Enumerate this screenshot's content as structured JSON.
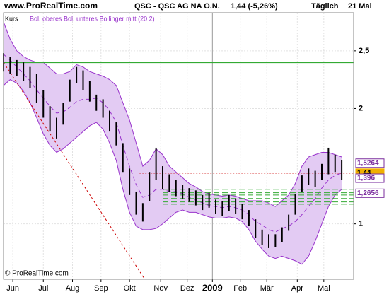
{
  "chart_data": {
    "type": "ohlc",
    "source": "www.ProRealTime.com",
    "title": "QSC - QSC AG NA O.N.",
    "quote": "1,44 (-5,26%)",
    "period": "Täglich",
    "date": "21 Mai",
    "copyright": "© ProRealTime.com",
    "xlim": [
      0,
      52.8
    ],
    "xticks": [
      {
        "value": 1.4,
        "label": "Jun"
      },
      {
        "value": 6,
        "label": "Jul"
      },
      {
        "value": 10.4,
        "label": "Aug"
      },
      {
        "value": 14.7,
        "label": "Sep"
      },
      {
        "value": 19,
        "label": "Okt"
      },
      {
        "value": 23.7,
        "label": "Nov"
      },
      {
        "value": 27.7,
        "label": "Dez"
      },
      {
        "value": 31.5,
        "label": "2009",
        "bold": true
      },
      {
        "value": 35.7,
        "label": "Feb"
      },
      {
        "value": 39.7,
        "label": "Mär"
      },
      {
        "value": 44.3,
        "label": "Apr"
      },
      {
        "value": 48.3,
        "label": "Mai"
      }
    ],
    "ylim": [
      0.52,
      2.83
    ],
    "yticks": [
      {
        "value": 2.5,
        "label": "2,5"
      },
      2,
      1
    ],
    "grid": true,
    "series": [
      {
        "name": "Kurs",
        "color": "#000000",
        "high": [
          2.48,
          2.45,
          2.42,
          2.4,
          2.36,
          2.3,
          2.16,
          2.02,
          1.92,
          2.05,
          2.25,
          2.36,
          2.33,
          2.24,
          2.12,
          2.08,
          1.98,
          1.88,
          1.7,
          1.48,
          1.28,
          1.18,
          1.45,
          1.66,
          1.5,
          1.43,
          1.38,
          1.34,
          1.31,
          1.29,
          1.25,
          1.27,
          1.21,
          1.2,
          1.25,
          1.22,
          1.17,
          1.12,
          1.04,
          0.95,
          0.91,
          0.91,
          0.97,
          1.08,
          1.26,
          1.42,
          1.48,
          1.46,
          1.52,
          1.66,
          1.6,
          1.55
        ],
        "low": [
          2.32,
          2.3,
          2.28,
          2.24,
          2.18,
          2.05,
          1.92,
          1.8,
          1.74,
          1.86,
          2.06,
          2.22,
          2.16,
          2.06,
          1.98,
          1.92,
          1.8,
          1.68,
          1.45,
          1.25,
          1.08,
          1.02,
          1.2,
          1.38,
          1.3,
          1.28,
          1.24,
          1.22,
          1.19,
          1.16,
          1.12,
          1.14,
          1.09,
          1.07,
          1.11,
          1.09,
          1.04,
          0.98,
          0.88,
          0.82,
          0.79,
          0.8,
          0.84,
          0.94,
          1.08,
          1.28,
          1.34,
          1.32,
          1.38,
          1.43,
          1.45,
          1.38
        ]
      }
    ],
    "bands": {
      "name": "Bol. oberes Bol. unteres Bollinger mitt (20 2)",
      "color": "#9933cc",
      "fill": "#e3cbf3",
      "upper": [
        2.75,
        2.6,
        2.5,
        2.45,
        2.42,
        2.4,
        2.4,
        2.35,
        2.3,
        2.3,
        2.32,
        2.38,
        2.36,
        2.32,
        2.3,
        2.28,
        2.25,
        2.2,
        2.05,
        1.9,
        1.7,
        1.5,
        1.55,
        1.65,
        1.6,
        1.5,
        1.45,
        1.4,
        1.35,
        1.32,
        1.28,
        1.26,
        1.25,
        1.24,
        1.25,
        1.24,
        1.22,
        1.2,
        1.2,
        1.2,
        1.18,
        1.15,
        1.2,
        1.25,
        1.35,
        1.5,
        1.58,
        1.6,
        1.62,
        1.62,
        1.6,
        1.58
      ],
      "lower": [
        2.2,
        2.25,
        2.22,
        2.15,
        2.05,
        1.92,
        1.78,
        1.68,
        1.62,
        1.65,
        1.7,
        1.75,
        1.8,
        1.85,
        1.88,
        1.82,
        1.7,
        1.55,
        1.3,
        1.1,
        0.98,
        0.95,
        0.95,
        0.96,
        1.0,
        1.05,
        1.1,
        1.12,
        1.1,
        1.1,
        1.08,
        1.06,
        1.05,
        1.05,
        1.06,
        1.05,
        1.02,
        0.95,
        0.85,
        0.78,
        0.72,
        0.7,
        0.72,
        0.7,
        0.68,
        0.65,
        0.72,
        0.85,
        1.0,
        1.15,
        1.25,
        1.3
      ],
      "mid": [
        2.47,
        2.42,
        2.36,
        2.3,
        2.24,
        2.16,
        2.09,
        2.02,
        1.96,
        1.97,
        2.01,
        2.06,
        2.08,
        2.08,
        2.09,
        2.05,
        1.98,
        1.88,
        1.68,
        1.5,
        1.34,
        1.23,
        1.25,
        1.3,
        1.3,
        1.28,
        1.28,
        1.26,
        1.23,
        1.21,
        1.18,
        1.16,
        1.15,
        1.14,
        1.15,
        1.14,
        1.12,
        1.08,
        1.02,
        0.99,
        0.95,
        0.93,
        0.96,
        0.98,
        1.02,
        1.08,
        1.15,
        1.22,
        1.31,
        1.38,
        1.42,
        1.44
      ]
    },
    "hlines": [
      {
        "value": 2.4,
        "color": "#33aa33",
        "style": "solid"
      },
      {
        "value": 1.44,
        "color": "#cc0000",
        "style": "dotted",
        "from": 20.5
      }
    ],
    "trendline": {
      "x": [
        0,
        21.3
      ],
      "y": [
        2.4,
        0.52
      ],
      "color": "#cc0000"
    },
    "levels": {
      "values": [
        1.3,
        1.27,
        1.25,
        1.22,
        1.19,
        1.17
      ],
      "from": 24,
      "color": "#33aa33"
    },
    "price_labels": [
      {
        "value": 1.5264,
        "label": "1,5264",
        "color": "#7b2e9e"
      },
      {
        "value": 1.44,
        "label": "1,44",
        "color": "#f0b000"
      },
      {
        "value": 1.396,
        "label": "1,396",
        "color": "#7b2e9e"
      },
      {
        "value": 1.2656,
        "label": "1,2656",
        "color": "#7b2e9e"
      }
    ]
  }
}
